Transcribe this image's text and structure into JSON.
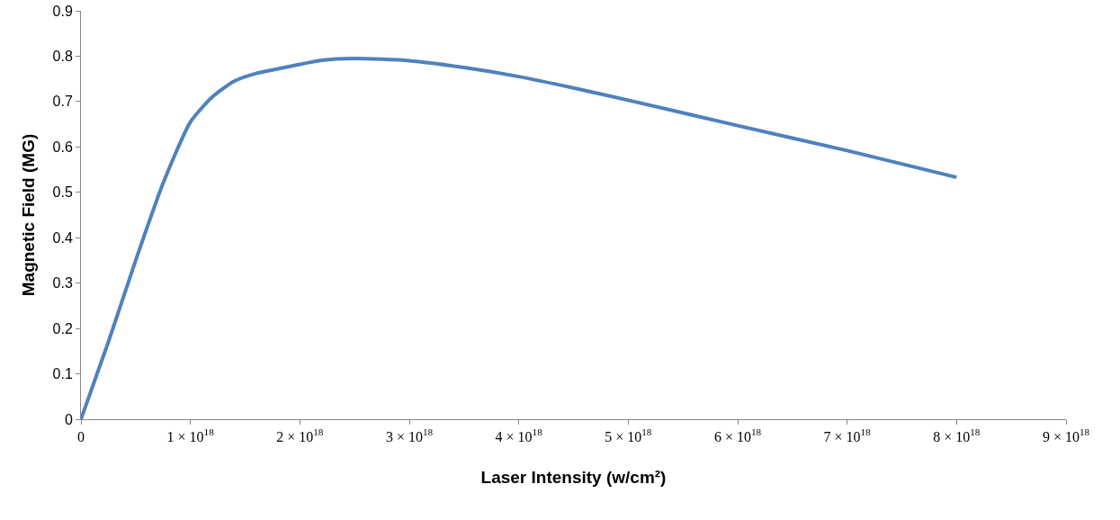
{
  "chart_data": {
    "type": "line",
    "xlabel": "Laser Intensity (w/cm²)",
    "ylabel": "Magnetic Field (MG)",
    "x": [
      0,
      2.5e+17,
      5e+17,
      7.5e+17,
      1e+18,
      1.2e+18,
      1.4e+18,
      1.6e+18,
      1.8e+18,
      2e+18,
      2.2e+18,
      2.5e+18,
      3e+18,
      3.5e+18,
      4e+18,
      4.5e+18,
      5e+18,
      6e+18,
      7e+18,
      8e+18
    ],
    "series": [
      {
        "color": "#4f81bd",
        "values": [
          0,
          0.17,
          0.35,
          0.52,
          0.655,
          0.71,
          0.745,
          0.762,
          0.772,
          0.782,
          0.791,
          0.795,
          0.79,
          0.775,
          0.755,
          0.73,
          0.703,
          0.647,
          0.592,
          0.533
        ]
      }
    ],
    "xlim": [
      0,
      9e+18
    ],
    "xticks": [
      0,
      {
        "value": 1e+18,
        "label": "1 × 10$^{18}$"
      },
      {
        "value": 2e+18,
        "label": "2 × 10$^{18}$"
      },
      {
        "value": 3e+18,
        "label": "3 × 10$^{18}$"
      },
      {
        "value": 4e+18,
        "label": "4 × 10$^{18}$"
      },
      {
        "value": 5e+18,
        "label": "5 × 10$^{18}$"
      },
      {
        "value": 6e+18,
        "label": "6 × 10$^{18}$"
      },
      {
        "value": 7e+18,
        "label": "7 × 10$^{18}$"
      },
      {
        "value": 8e+18,
        "label": "8 × 10$^{18}$"
      },
      {
        "value": 9e+18,
        "label": "9 × 10$^{18}$"
      }
    ],
    "ylim": [
      0,
      0.9
    ],
    "yticks": [
      0,
      0.1,
      0.2,
      0.3,
      0.4,
      0.5,
      0.6,
      0.7,
      0.8,
      0.9
    ],
    "grid": false,
    "marker": "none",
    "line_style": "solid"
  }
}
